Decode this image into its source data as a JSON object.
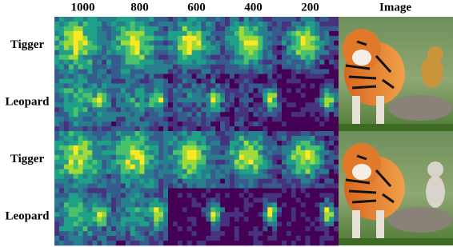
{
  "header": {
    "columns": [
      "1000",
      "800",
      "600",
      "400",
      "200",
      "Image"
    ]
  },
  "rows": [
    "Tigger",
    "Leopard",
    "Tigger",
    "Leopard"
  ]
}
